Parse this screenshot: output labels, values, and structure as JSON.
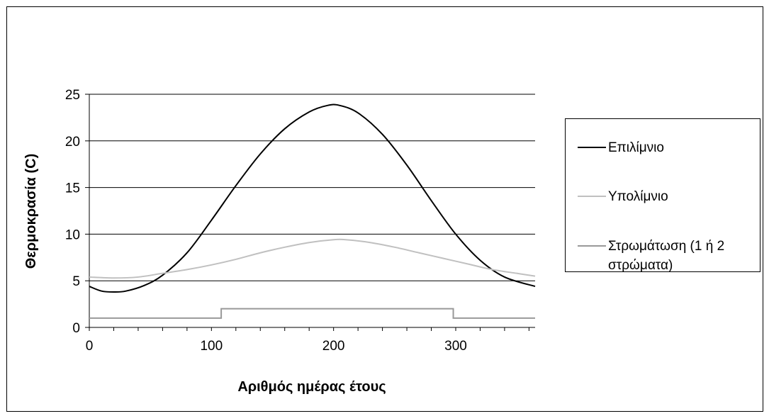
{
  "chart_data": {
    "type": "line",
    "title": "",
    "xlabel": "Αριθμός ημέρας έτους",
    "ylabel": "Θερμοκρασία (C)",
    "xlim": [
      0,
      365
    ],
    "ylim": [
      0,
      25
    ],
    "xticks": [
      0,
      100,
      200,
      300
    ],
    "yticks": [
      0,
      5,
      10,
      15,
      20,
      25
    ],
    "grid": "horizontal",
    "legend_position": "right",
    "series": [
      {
        "name": "Επιλίμνιο",
        "color": "#000000",
        "x": [
          0,
          10,
          20,
          30,
          45,
          60,
          80,
          100,
          120,
          140,
          160,
          180,
          195,
          205,
          220,
          240,
          260,
          280,
          300,
          320,
          340,
          365
        ],
        "y": [
          4.4,
          3.9,
          3.8,
          3.9,
          4.5,
          5.6,
          8.0,
          11.5,
          15.2,
          18.6,
          21.3,
          23.1,
          23.8,
          23.8,
          23.0,
          20.7,
          17.4,
          13.6,
          10.0,
          7.2,
          5.4,
          4.4
        ]
      },
      {
        "name": "Υπολίμνιο",
        "color": "#c0c0c0",
        "x": [
          0,
          20,
          40,
          60,
          80,
          100,
          120,
          140,
          160,
          180,
          200,
          210,
          230,
          250,
          270,
          290,
          310,
          330,
          350,
          365
        ],
        "y": [
          5.4,
          5.3,
          5.4,
          5.8,
          6.2,
          6.7,
          7.3,
          8.0,
          8.6,
          9.1,
          9.4,
          9.4,
          9.1,
          8.6,
          8.0,
          7.4,
          6.8,
          6.2,
          5.8,
          5.5
        ]
      },
      {
        "name": "Στρωμάτωση (1 ή 2 στρώματα)",
        "color": "#999999",
        "x": [
          0,
          108,
          108,
          298,
          298,
          365
        ],
        "y": [
          1,
          1,
          2,
          2,
          1,
          1
        ]
      }
    ]
  }
}
